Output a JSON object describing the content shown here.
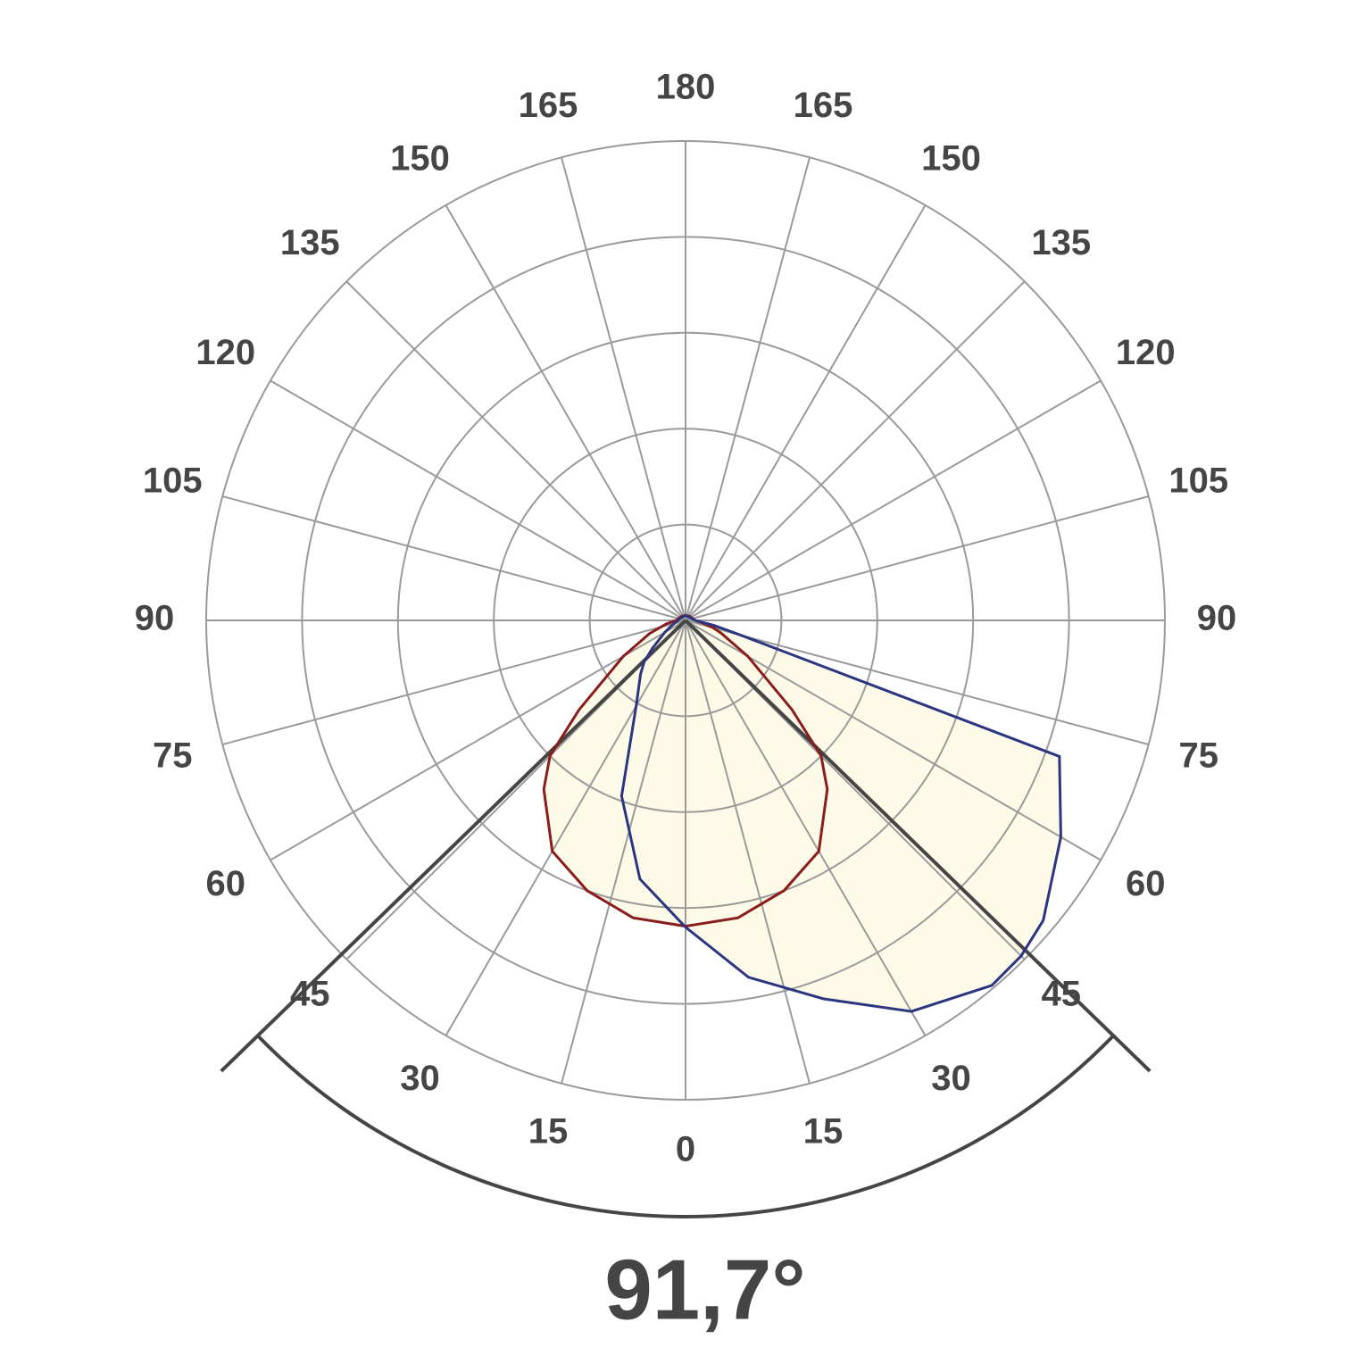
{
  "chart_data": {
    "type": "polar",
    "theta": [
      -180,
      -135,
      -90,
      -80,
      -70,
      -60,
      -50,
      -45,
      -40,
      -30,
      -20,
      -10,
      0,
      10,
      20,
      30,
      40,
      45,
      50,
      60,
      70,
      75,
      80,
      90,
      135,
      180
    ],
    "series": [
      {
        "color": "#8b1c1c",
        "values": [
          0.05,
          0.06,
          0.1,
          0.2,
          0.4,
          0.75,
          1.45,
          2.0,
          2.3,
          2.78,
          3.0,
          3.15,
          3.19,
          3.15,
          3.0,
          2.78,
          2.3,
          2.0,
          1.45,
          0.75,
          0.4,
          0.3,
          0.2,
          0.1,
          0.06,
          0.05
        ]
      },
      {
        "color": "#2b3580",
        "values": [
          0.05,
          0.05,
          0.08,
          0.1,
          0.15,
          0.25,
          0.45,
          0.61,
          0.73,
          1.03,
          1.95,
          2.74,
          3.2,
          3.78,
          4.2,
          4.71,
          4.97,
          4.95,
          4.87,
          4.52,
          4.15,
          0.6,
          0.3,
          0.1,
          0.05,
          0.05
        ]
      }
    ],
    "rlim": [
      0,
      5
    ],
    "rticks": [
      1,
      2,
      3,
      4,
      5
    ],
    "angle_ticks": [
      0,
      15,
      30,
      45,
      60,
      75,
      90,
      105,
      120,
      135,
      150,
      165,
      180
    ],
    "fill_color": "#fdfbe8",
    "grid_color": "#9a9a9a",
    "beam_angle": {
      "value": 91.7,
      "label": "91,7°"
    }
  }
}
